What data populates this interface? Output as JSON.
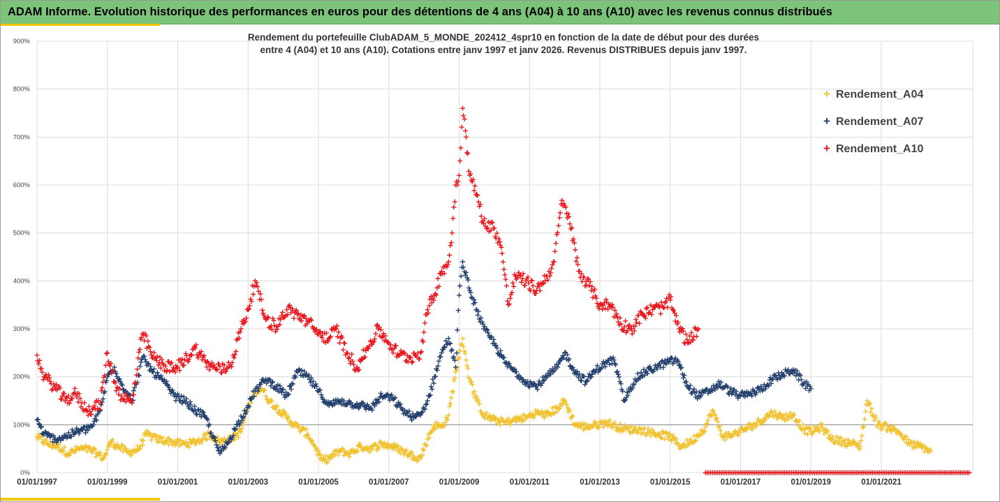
{
  "header": {
    "title": "ADAM Informe. Evolution historique des performances en euros pour des détentions de 4 ans (A04) à 10 ans (A10) avec les revenus connus distribués"
  },
  "chart_data": {
    "type": "scatter",
    "title_line1": "Rendement du portefeuille ClubADAM_5_MONDE_202412_4spr10  en fonction de la date de début pour des durées",
    "title_line2": "entre 4 (A04) et 10 ans (A10). Cotations entre janv 1997 et janv 2026. Revenus DISTRIBUES depuis janv 1997.",
    "xlabel": "",
    "ylabel": "",
    "xlim": [
      1997.0,
      2023.6
    ],
    "ylim": [
      0,
      900
    ],
    "grid": true,
    "legend_position": "right",
    "y_ticks": [
      "0%",
      "100%",
      "200%",
      "300%",
      "400%",
      "500%",
      "600%",
      "700%",
      "800%",
      "900%"
    ],
    "x_ticks": [
      "01/01/1997",
      "01/01/1999",
      "01/01/2001",
      "01/01/2003",
      "01/01/2005",
      "01/01/2007",
      "01/01/2009",
      "01/01/2011",
      "01/01/2013",
      "01/01/2015",
      "01/01/2017",
      "01/01/2019",
      "01/01/2021"
    ],
    "x_tick_years": [
      1997,
      1999,
      2001,
      2003,
      2005,
      2007,
      2009,
      2011,
      2013,
      2015,
      2017,
      2019,
      2021
    ],
    "series": [
      {
        "name": "Rendement_A04",
        "color": "#f2c12e",
        "x": [
          1997.0,
          1997.3,
          1997.6,
          1997.9,
          1998.2,
          1998.5,
          1998.7,
          1998.9,
          1999.1,
          1999.3,
          1999.6,
          1999.9,
          2000.1,
          2000.4,
          2000.8,
          2001.1,
          2001.4,
          2001.7,
          2001.9,
          2002.2,
          2002.5,
          2002.8,
          2003.0,
          2003.2,
          2003.4,
          2003.6,
          2003.9,
          2004.1,
          2004.4,
          2004.7,
          2004.9,
          2005.1,
          2005.3,
          2005.6,
          2005.9,
          2006.2,
          2006.5,
          2006.8,
          2007.1,
          2007.4,
          2007.7,
          2007.9,
          2008.1,
          2008.3,
          2008.5,
          2008.7,
          2008.9,
          2009.0,
          2009.1,
          2009.3,
          2009.5,
          2009.7,
          2010.0,
          2010.3,
          2010.6,
          2010.9,
          2011.2,
          2011.5,
          2011.8,
          2012.0,
          2012.3,
          2012.6,
          2012.9,
          2013.2,
          2013.5,
          2013.8,
          2014.1,
          2014.4,
          2014.7,
          2015.0,
          2015.3,
          2015.6,
          2015.8,
          2016.0,
          2016.2,
          2016.5,
          2016.8,
          2017.1,
          2017.4,
          2017.7,
          2017.9,
          2018.2,
          2018.5,
          2018.8,
          2019.0,
          2019.3,
          2019.6,
          2019.9,
          2020.2,
          2020.4,
          2020.6,
          2020.9,
          2021.2,
          2021.5,
          2021.8,
          2022.1,
          2022.4
        ],
        "values": [
          75,
          60,
          55,
          40,
          50,
          48,
          40,
          30,
          65,
          55,
          42,
          50,
          80,
          70,
          65,
          60,
          62,
          70,
          80,
          65,
          70,
          85,
          140,
          170,
          175,
          150,
          130,
          115,
          95,
          80,
          55,
          25,
          30,
          45,
          40,
          55,
          50,
          60,
          55,
          45,
          35,
          30,
          70,
          100,
          95,
          120,
          210,
          240,
          280,
          195,
          150,
          120,
          110,
          105,
          110,
          115,
          125,
          120,
          135,
          150,
          100,
          95,
          100,
          105,
          95,
          90,
          90,
          85,
          80,
          75,
          55,
          65,
          80,
          95,
          130,
          75,
          80,
          90,
          100,
          115,
          125,
          115,
          120,
          90,
          85,
          95,
          70,
          65,
          60,
          55,
          150,
          100,
          95,
          85,
          60,
          55,
          45
        ]
      },
      {
        "name": "Rendement_A07",
        "color": "#24406e",
        "x": [
          1997.0,
          1997.2,
          1997.5,
          1997.8,
          1998.1,
          1998.4,
          1998.6,
          1998.8,
          1999.0,
          1999.2,
          1999.4,
          1999.7,
          2000.0,
          2000.3,
          2000.6,
          2000.9,
          2001.2,
          2001.5,
          2001.8,
          2002.0,
          2002.2,
          2002.4,
          2002.7,
          2003.0,
          2003.2,
          2003.5,
          2003.8,
          2004.1,
          2004.4,
          2004.7,
          2005.0,
          2005.3,
          2005.6,
          2005.9,
          2006.2,
          2006.5,
          2006.8,
          2007.1,
          2007.4,
          2007.7,
          2007.9,
          2008.1,
          2008.3,
          2008.5,
          2008.7,
          2008.9,
          2009.0,
          2009.1,
          2009.3,
          2009.5,
          2009.7,
          2010.0,
          2010.3,
          2010.6,
          2010.9,
          2011.2,
          2011.5,
          2011.8,
          2012.0,
          2012.3,
          2012.6,
          2012.9,
          2013.2,
          2013.4,
          2013.7,
          2014.0,
          2014.3,
          2014.6,
          2014.9,
          2015.2,
          2015.5,
          2015.8,
          2016.1,
          2016.4,
          2016.7,
          2017.0,
          2017.3,
          2017.6,
          2017.9,
          2018.2,
          2018.5,
          2018.8,
          2019.0
        ],
        "values": [
          110,
          80,
          70,
          75,
          85,
          90,
          100,
          130,
          200,
          220,
          185,
          150,
          240,
          210,
          190,
          160,
          150,
          130,
          115,
          75,
          40,
          60,
          100,
          140,
          170,
          195,
          180,
          160,
          210,
          200,
          170,
          140,
          150,
          145,
          140,
          135,
          160,
          155,
          130,
          115,
          120,
          150,
          200,
          250,
          280,
          220,
          370,
          440,
          380,
          340,
          300,
          270,
          230,
          210,
          190,
          180,
          200,
          220,
          250,
          210,
          190,
          215,
          230,
          235,
          150,
          195,
          210,
          220,
          230,
          235,
          180,
          160,
          170,
          185,
          170,
          160,
          165,
          175,
          195,
          205,
          215,
          185,
          175
        ]
      },
      {
        "name": "Rendement_A10",
        "color": "#e8181e",
        "x": [
          1997.0,
          1997.2,
          1997.5,
          1997.8,
          1998.1,
          1998.4,
          1998.6,
          1998.8,
          1999.0,
          1999.2,
          1999.4,
          1999.7,
          2000.0,
          2000.3,
          2000.6,
          2000.9,
          2001.2,
          2001.5,
          2001.8,
          2002.0,
          2002.3,
          2002.5,
          2002.8,
          2003.0,
          2003.2,
          2003.5,
          2003.8,
          2004.1,
          2004.4,
          2004.7,
          2005.0,
          2005.3,
          2005.5,
          2005.8,
          2006.1,
          2006.4,
          2006.7,
          2007.0,
          2007.3,
          2007.6,
          2007.9,
          2008.1,
          2008.3,
          2008.5,
          2008.7,
          2008.8,
          2008.9,
          2009.0,
          2009.1,
          2009.2,
          2009.3,
          2009.5,
          2009.7,
          2010.0,
          2010.2,
          2010.4,
          2010.6,
          2010.9,
          2011.2,
          2011.5,
          2011.7,
          2011.9,
          2012.1,
          2012.4,
          2012.7,
          2013.0,
          2013.3,
          2013.6,
          2013.9,
          2014.2,
          2014.5,
          2014.8,
          2015.0,
          2015.2,
          2015.5,
          2015.8
        ],
        "values": [
          245,
          200,
          180,
          150,
          165,
          130,
          135,
          145,
          250,
          190,
          160,
          145,
          290,
          240,
          225,
          215,
          235,
          260,
          230,
          220,
          215,
          225,
          300,
          340,
          400,
          320,
          305,
          340,
          330,
          315,
          290,
          280,
          300,
          250,
          220,
          260,
          300,
          270,
          245,
          240,
          250,
          340,
          370,
          420,
          440,
          500,
          600,
          620,
          760,
          700,
          620,
          580,
          520,
          510,
          470,
          350,
          410,
          400,
          380,
          410,
          440,
          560,
          540,
          420,
          390,
          350,
          350,
          310,
          300,
          330,
          340,
          345,
          360,
          310,
          270,
          300
        ]
      }
    ],
    "zero_band": {
      "color": "#e8181e",
      "x_start": 2016.0,
      "x_end": 2023.5,
      "value": 0
    }
  }
}
